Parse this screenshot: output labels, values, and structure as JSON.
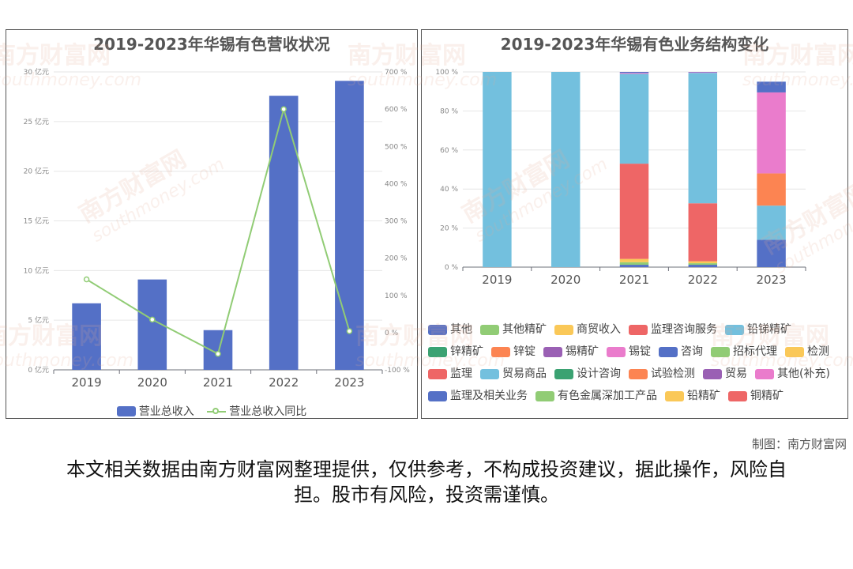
{
  "chart_data": [
    {
      "type": "bar",
      "title": "2019-2023年华锡有色营收状况",
      "categories": [
        "2019",
        "2020",
        "2021",
        "2022",
        "2023"
      ],
      "series": [
        {
          "name": "营业总收入",
          "type": "bar",
          "axis": "left",
          "values": [
            6.7,
            9.1,
            4.0,
            27.6,
            29.1
          ]
        },
        {
          "name": "营业总收入同比",
          "type": "line",
          "axis": "right",
          "values": [
            143,
            35,
            -57,
            600,
            4
          ]
        }
      ],
      "y_left": {
        "ylim": [
          0,
          30
        ],
        "ticks": [
          "0 亿元",
          "5 亿元",
          "10 亿元",
          "15 亿元",
          "20 亿元",
          "25 亿元",
          "30 亿元"
        ]
      },
      "y_right": {
        "ylim": [
          -100,
          700
        ],
        "ticks": [
          "-100 %",
          "0 %",
          "100 %",
          "200 %",
          "300 %",
          "400 %",
          "500 %",
          "600 %",
          "700 %"
        ]
      },
      "legend_position": "bottom",
      "grid": true,
      "colors": {
        "bar": "#5470c6",
        "line": "#91cc75"
      }
    },
    {
      "type": "bar",
      "stacked": true,
      "title": "2019-2023年华锡有色业务结构变化",
      "categories": [
        "2019",
        "2020",
        "2021",
        "2022",
        "2023"
      ],
      "ylim": [
        0,
        100
      ],
      "y_ticks": [
        "0 %",
        "20 %",
        "40 %",
        "60 %",
        "80 %",
        "100 %"
      ],
      "series": [
        {
          "name": "其他",
          "color": "#5470c6",
          "values": [
            0,
            0,
            0,
            0,
            0
          ]
        },
        {
          "name": "其他精矿",
          "color": "#91cc75",
          "values": [
            0,
            0,
            0,
            0,
            0
          ]
        },
        {
          "name": "商贸收入",
          "color": "#fac858",
          "values": [
            0,
            0,
            0,
            0,
            0
          ]
        },
        {
          "name": "监理咨询服务",
          "color": "#ee6666",
          "values": [
            0,
            0,
            0,
            0,
            0
          ]
        },
        {
          "name": "铅锑精矿",
          "color": "#73c0de",
          "values": [
            0,
            0,
            0,
            0,
            0
          ]
        },
        {
          "name": "锌精矿",
          "color": "#3ba272",
          "values": [
            0,
            0,
            0,
            0,
            0
          ]
        },
        {
          "name": "锌锭",
          "color": "#fc8452",
          "values": [
            0,
            0,
            0,
            0,
            0
          ]
        },
        {
          "name": "锡精矿",
          "color": "#9a60b4",
          "values": [
            0,
            0,
            0,
            0,
            0
          ]
        },
        {
          "name": "锡锭",
          "color": "#ea7ccc",
          "values": [
            0,
            0,
            0,
            0,
            0
          ]
        },
        {
          "name": "咨询",
          "color": "#5470c6",
          "values": [
            0,
            0,
            1.2,
            1.2,
            14
          ]
        },
        {
          "name": "招标代理",
          "color": "#91cc75",
          "values": [
            0,
            0,
            1.3,
            0.8,
            0
          ]
        },
        {
          "name": "检测",
          "color": "#fac858",
          "values": [
            0,
            0,
            1.7,
            1.0,
            0
          ]
        },
        {
          "name": "监理",
          "color": "#ee6666",
          "values": [
            0,
            0,
            48.8,
            29.7,
            0
          ]
        },
        {
          "name": "贸易商品",
          "color": "#73c0de",
          "values": [
            100,
            100,
            46.0,
            66.8,
            17.5
          ]
        },
        {
          "name": "设计咨询",
          "color": "#3ba272",
          "values": [
            0,
            0,
            0,
            0,
            0
          ]
        },
        {
          "name": "试验检测",
          "color": "#fc8452",
          "values": [
            0,
            0,
            0,
            0,
            16.5
          ]
        },
        {
          "name": "贸易",
          "color": "#9a60b4",
          "values": [
            0,
            0,
            0,
            0,
            0
          ]
        },
        {
          "name": "其他(补充)",
          "color": "#ea7ccc",
          "values": [
            0,
            0,
            0.5,
            0.3,
            41.5
          ]
        },
        {
          "name": "监理及相关业务",
          "color": "#5470c6",
          "values": [
            0,
            0,
            0.5,
            0.2,
            5.5
          ]
        },
        {
          "name": "有色金属深加工产品",
          "color": "#91cc75",
          "values": [
            0,
            0,
            0,
            0,
            0
          ]
        },
        {
          "name": "铅精矿",
          "color": "#fac858",
          "values": [
            0,
            0,
            0,
            0,
            0
          ]
        },
        {
          "name": "铜精矿",
          "color": "#ee6666",
          "values": [
            0,
            0,
            0,
            0,
            0
          ]
        }
      ],
      "legend_position": "bottom",
      "grid": true
    }
  ],
  "watermark": {
    "text": "南方财富网",
    "sub": "southmoney.com"
  },
  "credit": "制图：南方财富网",
  "disclaimer": "本文相关数据由南方财富网整理提供，仅供参考，不构成投资建议，据此操作，风险自担。股市有风险，投资需谨慎。"
}
